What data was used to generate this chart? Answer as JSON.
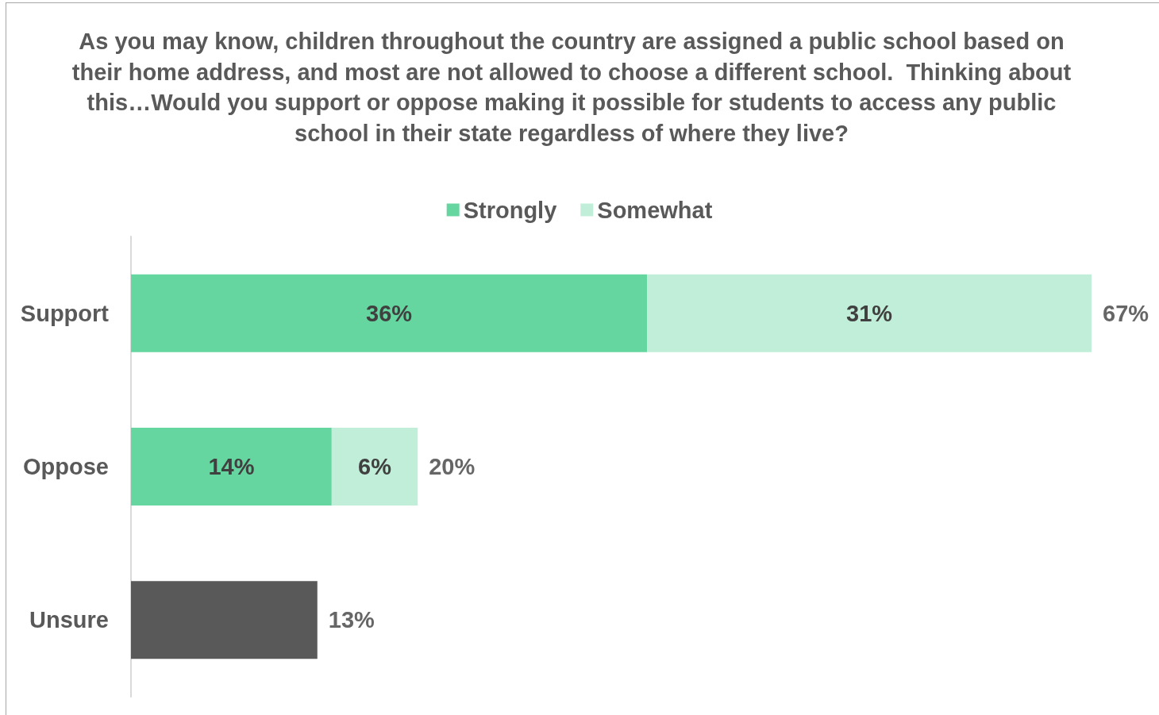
{
  "chart_data": {
    "type": "bar",
    "orientation": "horizontal",
    "stacked": true,
    "title": "As you may know, children throughout the country are assigned a public school based on their home address, and most are not allowed to choose a different school.  Thinking about this…Would you support or oppose making it possible for students to access any public school in their state regardless of where they live?",
    "categories": [
      "Support",
      "Oppose",
      "Unsure"
    ],
    "series": [
      {
        "name": "Strongly",
        "color": "#66d6a0",
        "values": [
          36,
          14,
          null
        ],
        "value_labels": [
          "36%",
          "14%",
          null
        ]
      },
      {
        "name": "Somewhat",
        "color": "#c1eed9",
        "values": [
          31,
          6,
          null
        ],
        "value_labels": [
          "31%",
          "6%",
          null
        ]
      },
      {
        "color": "#595959",
        "values": [
          null,
          null,
          13
        ]
      }
    ],
    "totals": [
      "67%",
      "20%",
      "13%"
    ],
    "legend": "top"
  }
}
